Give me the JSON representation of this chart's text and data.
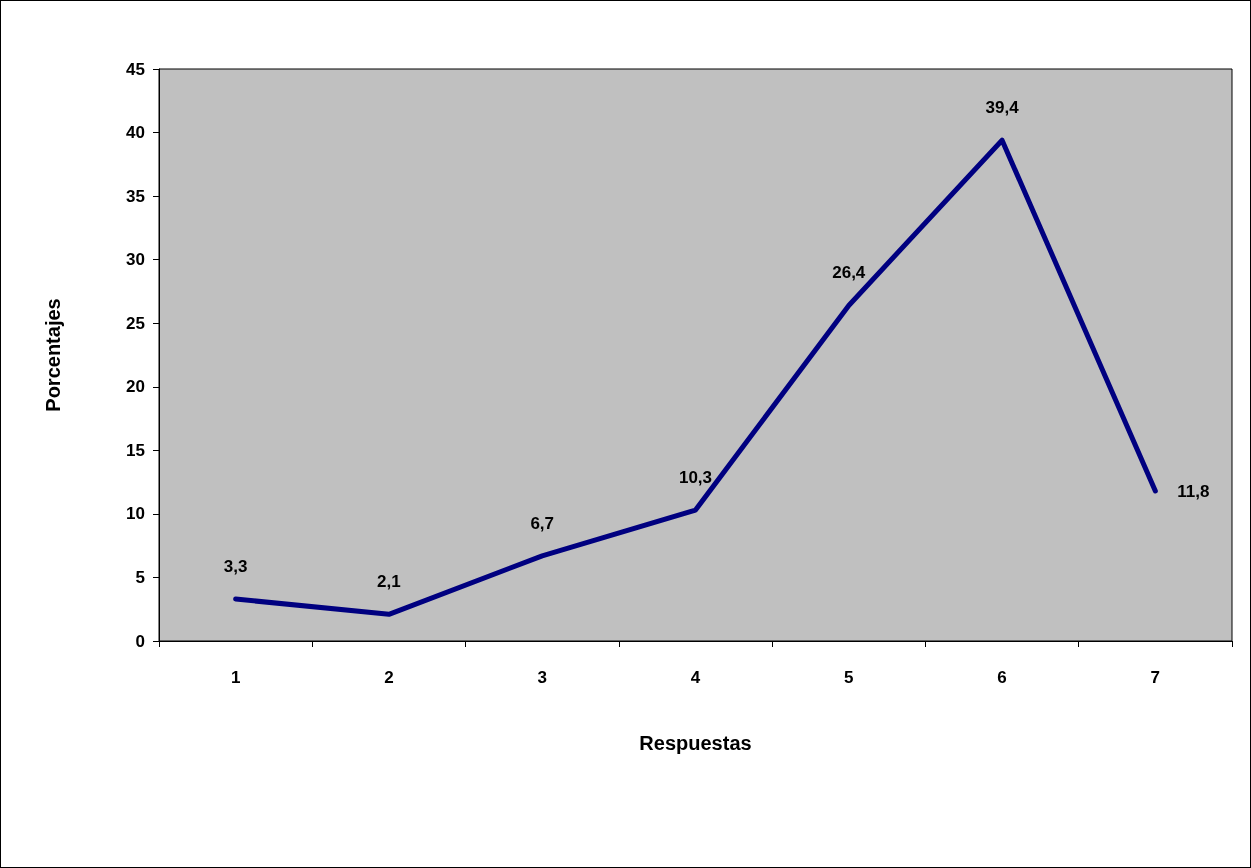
{
  "chart_data": {
    "type": "line",
    "xlabel": "Respuestas",
    "ylabel": "Porcentajes",
    "categories": [
      "1",
      "2",
      "3",
      "4",
      "5",
      "6",
      "7"
    ],
    "series": [
      {
        "color": "#000080",
        "values": [
          3.3,
          2.1,
          6.7,
          10.3,
          26.4,
          39.4,
          11.8
        ],
        "value_labels": [
          "3,3",
          "2,1",
          "6,7",
          "10,3",
          "26,4",
          "39,4",
          "11,8"
        ]
      }
    ],
    "ylim": [
      0,
      45
    ],
    "yticks": [
      0,
      5,
      10,
      15,
      20,
      25,
      30,
      35,
      40,
      45
    ],
    "grid": false,
    "marker": "none",
    "line_style": "solid"
  }
}
